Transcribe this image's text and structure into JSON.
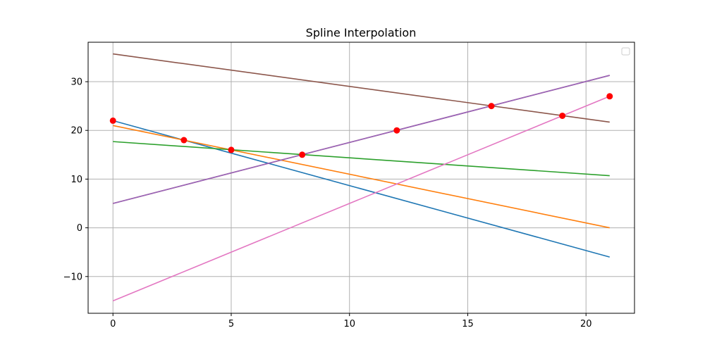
{
  "chart_data": {
    "type": "line",
    "title": "Spline Interpolation",
    "xlabel": "",
    "ylabel": "",
    "xlim": [
      -1.05,
      22.05
    ],
    "ylim": [
      -17.55,
      38.1
    ],
    "grid": true,
    "legend": "top-right",
    "xticks": [
      0,
      5,
      10,
      15,
      20
    ],
    "yticks": [
      -10,
      0,
      10,
      20,
      30
    ],
    "series": [
      {
        "color": "#1f77b4",
        "x": [
          0,
          21
        ],
        "y": [
          22.0,
          -6.0
        ]
      },
      {
        "color": "#ff7f0e",
        "x": [
          0,
          21
        ],
        "y": [
          21.0,
          0.0
        ]
      },
      {
        "color": "#2ca02c",
        "x": [
          0,
          21
        ],
        "y": [
          17.7,
          10.7
        ]
      },
      {
        "color": "#d62728",
        "x": [
          0,
          21
        ],
        "y": [
          5.0,
          31.3
        ]
      },
      {
        "color": "#9467bd",
        "x": [
          0,
          21
        ],
        "y": [
          5.0,
          31.3
        ]
      },
      {
        "color": "#8c564b",
        "x": [
          0,
          21
        ],
        "y": [
          35.7,
          21.7
        ]
      },
      {
        "color": "#e377c2",
        "x": [
          0,
          21
        ],
        "y": [
          -15.0,
          27.0
        ]
      }
    ],
    "points": {
      "color": "#ff0000",
      "x": [
        0,
        3,
        5,
        8,
        12,
        16,
        19,
        21
      ],
      "y": [
        22,
        18,
        16,
        15,
        20,
        25,
        23,
        27
      ]
    }
  }
}
